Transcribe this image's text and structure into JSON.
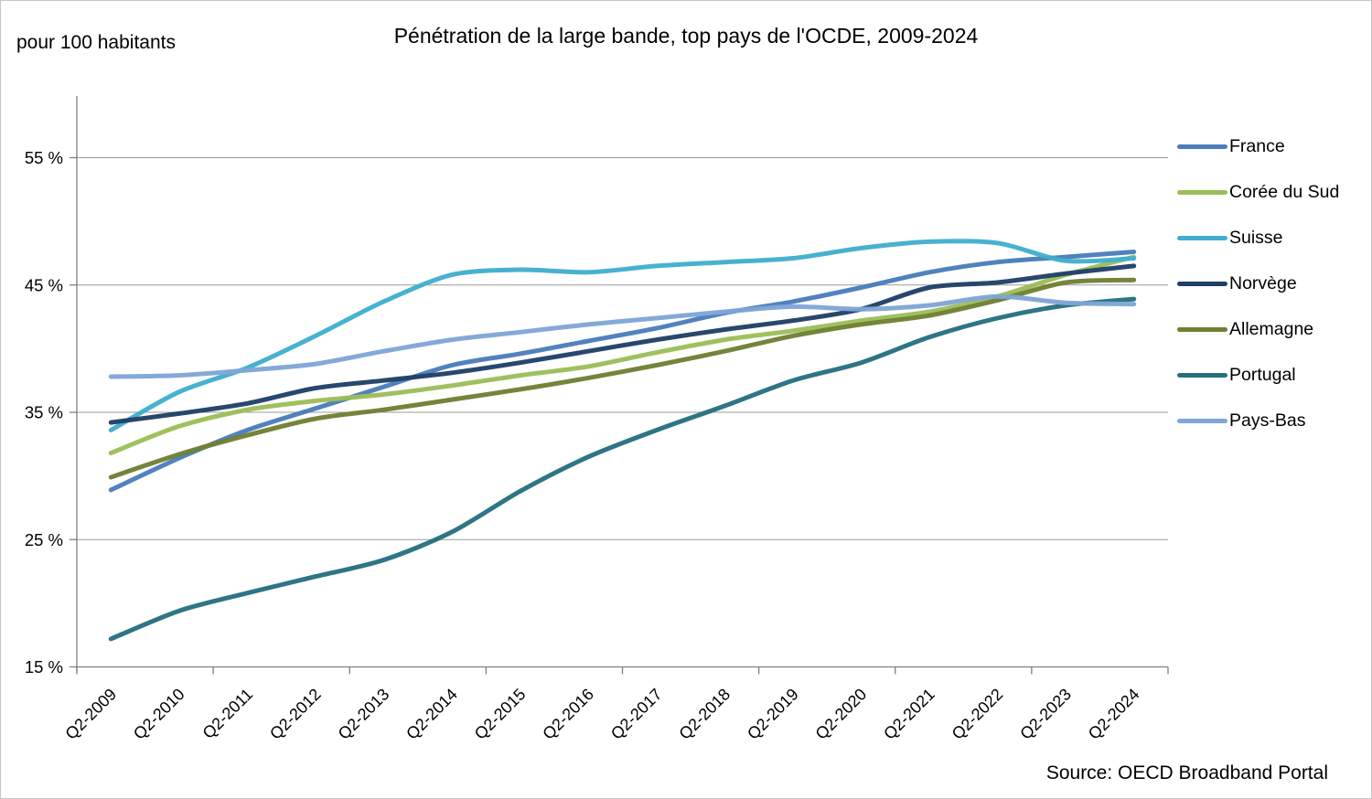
{
  "page": {
    "background": "#ffffff",
    "border_color": "#c6c6c6"
  },
  "chart_data": {
    "type": "line",
    "title": "Pénétration de la large bande, top pays de l'OCDE, 2009-2024",
    "ylabel": "pour 100 habitants",
    "source": "Source: OECD Broadband Portal",
    "x_categories": [
      "Q2-2009",
      "Q2-2010",
      "Q2-2011",
      "Q2-2012",
      "Q2-2013",
      "Q2-2014",
      "Q2-2015",
      "Q2-2016",
      "Q2-2017",
      "Q2-2018",
      "Q2-2019",
      "Q2-2020",
      "Q2-2021",
      "Q2-2022",
      "Q2-2023",
      "Q2-2024"
    ],
    "y_axis": {
      "tick_labels": [
        "15 %",
        "25 %",
        "35 %",
        "45 %",
        "55 %"
      ],
      "gridline_values": [
        15,
        25,
        35,
        45,
        55
      ],
      "range": [
        15,
        55.8
      ]
    },
    "grid": "horizontal-only",
    "legend_position": "right",
    "style": {
      "grid_color": "#9b9b9b",
      "axis_color": "#7f7f7f",
      "text_color": "#000000",
      "line_width": 5
    },
    "series": [
      {
        "name": "France",
        "color": "#4A7DBA",
        "values": [
          28.9,
          31.4,
          33.6,
          35.3,
          37.0,
          38.7,
          39.6,
          40.6,
          41.6,
          42.8,
          43.7,
          44.8,
          46.0,
          46.8,
          47.2,
          47.6
        ]
      },
      {
        "name": "Corée du Sud",
        "color": "#9CBD58",
        "values": [
          31.8,
          33.9,
          35.2,
          35.9,
          36.4,
          37.1,
          37.9,
          38.6,
          39.7,
          40.7,
          41.4,
          42.2,
          42.9,
          44.1,
          45.8,
          47.2
        ]
      },
      {
        "name": "Suisse",
        "color": "#41AECE",
        "values": [
          33.6,
          36.6,
          38.5,
          41.0,
          43.7,
          45.8,
          46.2,
          46.0,
          46.5,
          46.8,
          47.1,
          47.9,
          48.4,
          48.3,
          46.9,
          47.1
        ]
      },
      {
        "name": "Norvège",
        "color": "#1F4066",
        "values": [
          34.2,
          34.9,
          35.7,
          36.9,
          37.5,
          38.1,
          38.9,
          39.8,
          40.7,
          41.5,
          42.2,
          43.1,
          44.8,
          45.2,
          45.9,
          46.5
        ]
      },
      {
        "name": "Allemagne",
        "color": "#6E8033",
        "values": [
          29.9,
          31.7,
          33.2,
          34.5,
          35.2,
          36.0,
          36.8,
          37.7,
          38.7,
          39.8,
          41.0,
          41.9,
          42.6,
          43.8,
          45.2,
          45.4
        ]
      },
      {
        "name": "Portugal",
        "color": "#256F80",
        "values": [
          17.2,
          19.4,
          20.8,
          22.1,
          23.4,
          25.6,
          28.8,
          31.5,
          33.6,
          35.5,
          37.5,
          38.9,
          40.9,
          42.4,
          43.4,
          43.9
        ]
      },
      {
        "name": "Pays-Bas",
        "color": "#7FA6D6",
        "values": [
          37.8,
          37.9,
          38.3,
          38.8,
          39.8,
          40.7,
          41.3,
          41.9,
          42.4,
          42.9,
          43.3,
          43.1,
          43.4,
          44.1,
          43.6,
          43.5
        ]
      }
    ]
  }
}
